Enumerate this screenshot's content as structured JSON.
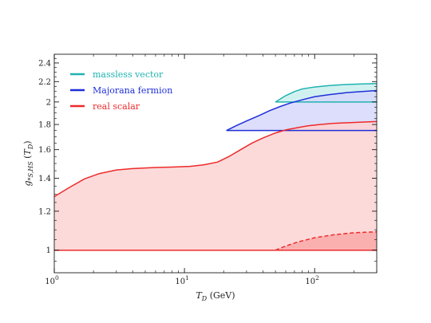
{
  "chart_data": {
    "type": "area",
    "x_scale": "log",
    "xlim": [
      1,
      300
    ],
    "ylim": [
      0.9,
      2.5
    ],
    "y_scale": "log",
    "xlabel": "T_D (GeV)",
    "ylabel": "g_{*S,HS}(T_D)",
    "grid": false,
    "legend_position": "top-left",
    "x_ticks": [
      {
        "value": 1,
        "label": "10",
        "exp": "0"
      },
      {
        "value": 10,
        "label": "10",
        "exp": "1"
      },
      {
        "value": 100,
        "label": "10",
        "exp": "2"
      }
    ],
    "y_ticks": [
      {
        "value": 1.0,
        "label": "1"
      },
      {
        "value": 1.2,
        "label": "1.2"
      },
      {
        "value": 1.4,
        "label": "1.4"
      },
      {
        "value": 1.6,
        "label": "1.6"
      },
      {
        "value": 1.8,
        "label": "1.8"
      },
      {
        "value": 2.0,
        "label": "2"
      },
      {
        "value": 2.2,
        "label": "2.2"
      },
      {
        "value": 2.4,
        "label": "2.4"
      }
    ],
    "series": [
      {
        "name": "massless vector",
        "color": "#1fb3b0",
        "fill": "#c9eeee",
        "lower_bound": 2.0,
        "upper": {
          "x": [
            50,
            60,
            70,
            80,
            100,
            130,
            170,
            220,
            300
          ],
          "y": [
            2.0,
            2.06,
            2.1,
            2.125,
            2.145,
            2.16,
            2.17,
            2.175,
            2.18
          ]
        }
      },
      {
        "name": "Majorana fermion",
        "color": "#1f2fd8",
        "fill": "#d6d8fb",
        "lower_bound": 1.75,
        "upper": {
          "x": [
            21,
            25,
            30,
            38,
            45,
            55,
            65,
            80,
            100,
            130,
            180,
            300
          ],
          "y": [
            1.75,
            1.79,
            1.83,
            1.88,
            1.92,
            1.96,
            1.99,
            2.02,
            2.05,
            2.07,
            2.09,
            2.11
          ]
        }
      },
      {
        "name": "real scalar",
        "color": "#ee2a2a",
        "fill": "#fdd4d4",
        "lower_bound": 1.0,
        "upper": {
          "x": [
            1,
            1.3,
            1.7,
            2.2,
            3,
            4,
            6,
            8,
            11,
            14,
            18,
            22,
            27,
            33,
            40,
            50,
            60,
            75,
            90,
            110,
            140,
            180,
            230,
            300
          ],
          "y": [
            1.285,
            1.34,
            1.395,
            1.43,
            1.455,
            1.465,
            1.472,
            1.475,
            1.48,
            1.49,
            1.51,
            1.55,
            1.6,
            1.65,
            1.69,
            1.73,
            1.755,
            1.775,
            1.79,
            1.8,
            1.81,
            1.815,
            1.82,
            1.825
          ]
        },
        "dashed": {
          "x": [
            50,
            60,
            75,
            100,
            140,
            200,
            300
          ],
          "y": [
            1.0,
            1.02,
            1.04,
            1.06,
            1.075,
            1.085,
            1.09
          ]
        }
      }
    ]
  }
}
